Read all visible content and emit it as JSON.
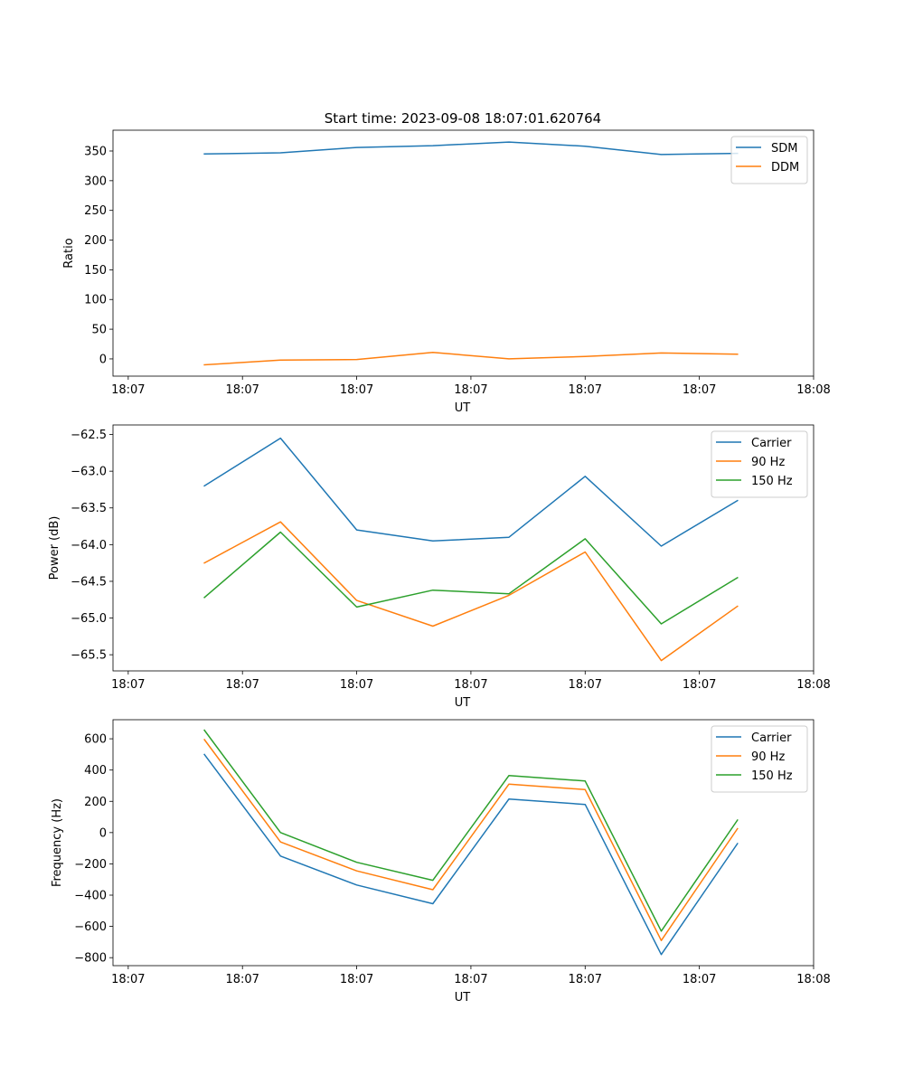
{
  "figure_title": "Start time: 2023-09-08 18:07:01.620764",
  "chart_data": [
    {
      "type": "line",
      "title": "Start time: 2023-09-08 18:07:01.620764",
      "xlabel": "UT",
      "ylabel": "Ratio",
      "x": [
        1,
        2,
        3,
        4,
        5,
        6,
        7,
        8
      ],
      "xlim": [
        -0.2,
        9.0
      ],
      "xticks": [
        0,
        1.5,
        3,
        4.5,
        6,
        7.5,
        9
      ],
      "xtick_labels": [
        "18:07",
        "18:07",
        "18:07",
        "18:07",
        "18:07",
        "18:07",
        "18:08"
      ],
      "ylim": [
        -29,
        385
      ],
      "yticks": [
        0,
        50,
        100,
        150,
        200,
        250,
        300,
        350
      ],
      "ytick_labels": [
        "0",
        "50",
        "100",
        "150",
        "200",
        "250",
        "300",
        "350"
      ],
      "legend_position": "top-right",
      "series": [
        {
          "name": "SDM",
          "color": "#1f77b4",
          "values": [
            345,
            347,
            356,
            359,
            365,
            358,
            344,
            346
          ]
        },
        {
          "name": "DDM",
          "color": "#ff7f0e",
          "values": [
            -10,
            -2,
            -1,
            11,
            0,
            4,
            10,
            8
          ]
        }
      ]
    },
    {
      "type": "line",
      "title": "",
      "xlabel": "UT",
      "ylabel": "Power (dB)",
      "x": [
        1,
        2,
        3,
        4,
        5,
        6,
        7,
        8
      ],
      "xlim": [
        -0.2,
        9.0
      ],
      "xticks": [
        0,
        1.5,
        3,
        4.5,
        6,
        7.5,
        9
      ],
      "xtick_labels": [
        "18:07",
        "18:07",
        "18:07",
        "18:07",
        "18:07",
        "18:07",
        "18:08"
      ],
      "ylim": [
        -65.72,
        -62.37
      ],
      "yticks": [
        -62.5,
        -63.0,
        -63.5,
        -64.0,
        -64.5,
        -65.0,
        -65.5
      ],
      "ytick_labels": [
        "−62.5",
        "−63.0",
        "−63.5",
        "−64.0",
        "−64.5",
        "−65.0",
        "−65.5"
      ],
      "legend_position": "top-right",
      "series": [
        {
          "name": "Carrier",
          "color": "#1f77b4",
          "values": [
            -63.2,
            -62.55,
            -63.8,
            -63.95,
            -63.9,
            -63.07,
            -64.02,
            -63.4
          ]
        },
        {
          "name": "90 Hz",
          "color": "#ff7f0e",
          "values": [
            -64.25,
            -63.69,
            -64.76,
            -65.11,
            -64.69,
            -64.1,
            -65.58,
            -64.84
          ]
        },
        {
          "name": "150 Hz",
          "color": "#2ca02c",
          "values": [
            -64.72,
            -63.83,
            -64.85,
            -64.62,
            -64.67,
            -63.92,
            -65.08,
            -64.45
          ]
        }
      ]
    },
    {
      "type": "line",
      "title": "",
      "xlabel": "UT",
      "ylabel": "Frequency (Hz)",
      "x": [
        1,
        2,
        3,
        4,
        5,
        6,
        7,
        8
      ],
      "xlim": [
        -0.2,
        9.0
      ],
      "xticks": [
        0,
        1.5,
        3,
        4.5,
        6,
        7.5,
        9
      ],
      "xtick_labels": [
        "18:07",
        "18:07",
        "18:07",
        "18:07",
        "18:07",
        "18:07",
        "18:08"
      ],
      "ylim": [
        -851,
        722
      ],
      "yticks": [
        600,
        400,
        200,
        0,
        -200,
        -400,
        -600,
        -800
      ],
      "ytick_labels": [
        "600",
        "400",
        "200",
        "0",
        "−200",
        "−400",
        "−600",
        "−800"
      ],
      "legend_position": "top-right",
      "series": [
        {
          "name": "Carrier",
          "color": "#1f77b4",
          "values": [
            500,
            -150,
            -335,
            -455,
            215,
            180,
            -780,
            -70
          ]
        },
        {
          "name": "90 Hz",
          "color": "#ff7f0e",
          "values": [
            595,
            -60,
            -245,
            -365,
            310,
            275,
            -690,
            25
          ]
        },
        {
          "name": "150 Hz",
          "color": "#2ca02c",
          "values": [
            655,
            0,
            -190,
            -305,
            365,
            330,
            -630,
            80
          ]
        }
      ]
    }
  ]
}
